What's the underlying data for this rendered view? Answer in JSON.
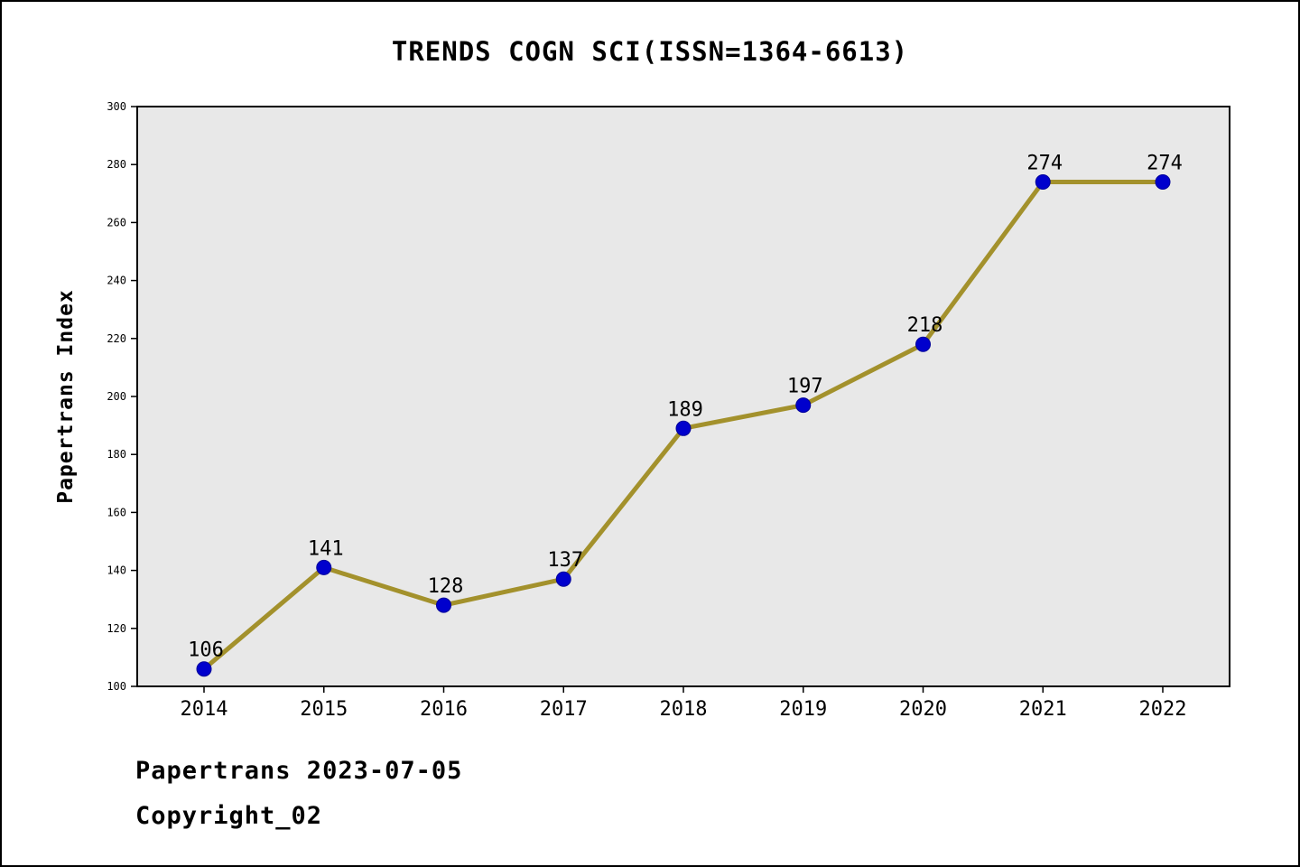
{
  "title": "TRENDS COGN SCI(ISSN=1364-6613)",
  "footer": {
    "line1": "Papertrans 2023-07-05",
    "line2": "Copyright_02"
  },
  "chart_data": {
    "type": "line",
    "title": "TRENDS COGN SCI(ISSN=1364-6613)",
    "categories": [
      "2014",
      "2015",
      "2016",
      "2017",
      "2018",
      "2019",
      "2020",
      "2021",
      "2022"
    ],
    "values": [
      106,
      141,
      128,
      137,
      189,
      197,
      218,
      274,
      274
    ],
    "xlabel": "",
    "ylabel": "Papertrans Index",
    "ylim": [
      100,
      300
    ],
    "yticks": [
      100,
      120,
      140,
      160,
      180,
      200,
      220,
      240,
      260,
      280,
      300
    ],
    "grid": false,
    "legend_position": "none",
    "colors": {
      "line": "#a3912c",
      "marker_fill": "#0000cd",
      "marker_edge": "#00009a",
      "plot_background": "#e8e8e8",
      "axis": "#000000",
      "text": "#000000"
    }
  }
}
